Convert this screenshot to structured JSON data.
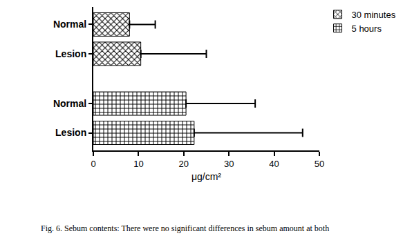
{
  "chart_data": {
    "type": "bar",
    "orientation": "horizontal",
    "categories": [
      "Normal",
      "Lesion",
      "Normal",
      "Lesion"
    ],
    "series": [
      {
        "name": "30 minutes",
        "color": "#000000",
        "marker": "x",
        "values": [
          8,
          10.5,
          null,
          null
        ],
        "errors": [
          5.7,
          14.5,
          null,
          null
        ]
      },
      {
        "name": "5 hours",
        "color": "#000000",
        "marker": "+",
        "values": [
          null,
          null,
          20.5,
          22.3
        ],
        "errors": [
          null,
          null,
          15.3,
          24
        ]
      }
    ],
    "x_label": "μg/cm²",
    "xlim": [
      0,
      50
    ],
    "xticks": [
      0,
      10,
      20,
      30,
      40,
      50
    ],
    "legend": "top right",
    "grid": false,
    "caption": "Fig. 6. Sebum contents: There were no significant differences in sebum amount at both"
  }
}
